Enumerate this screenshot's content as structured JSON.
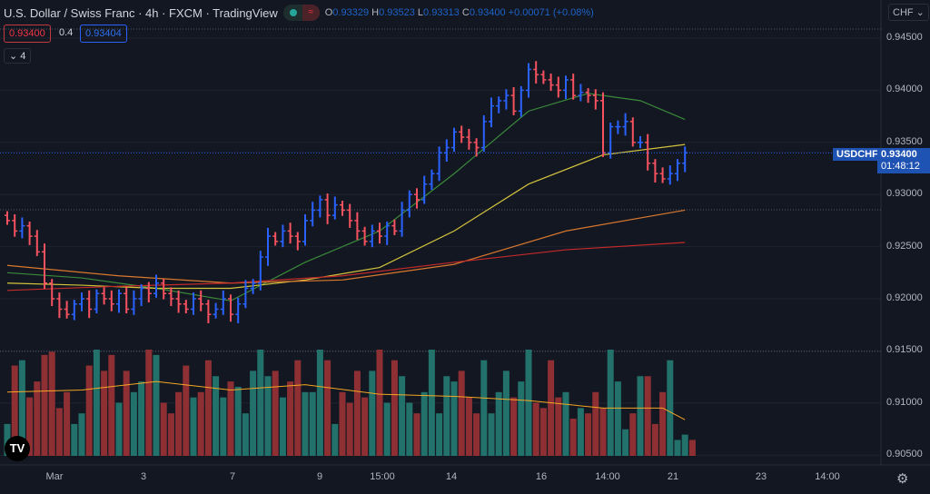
{
  "header": {
    "title": "U.S. Dollar / Swiss Franc · 4h · FXCM · TradingView",
    "market_status": "≈",
    "o_label": "O",
    "o": "0.93329",
    "h_label": "H",
    "h": "0.93523",
    "l_label": "L",
    "l": "0.93313",
    "c_label": "C",
    "c": "0.93400",
    "change": "+0.00071 (+0.08%)"
  },
  "trade": {
    "sell": "0.93400",
    "spread": "0.4",
    "buy": "0.93404",
    "indicators_collapsed": "4"
  },
  "price_axis": {
    "currency": "CHF",
    "ticks": [
      "0.94500",
      "0.94000",
      "0.93500",
      "0.93000",
      "0.92500",
      "0.92000",
      "0.91500",
      "0.91000",
      "0.90500"
    ],
    "symbol_tag": "USDCHF",
    "last_price": "0.93400",
    "countdown": "01:48:12"
  },
  "time_axis": {
    "ticks": [
      "Mar",
      "3",
      "7",
      "9",
      "15:00",
      "14",
      "16",
      "14:00",
      "21",
      "23",
      "14:00"
    ]
  },
  "colors": {
    "up": "#2962ff",
    "down": "#f7525f",
    "vol_up": "#22726b",
    "vol_down": "#8e3033",
    "vol_ma": "#f5a623",
    "bg": "#131722",
    "grid": "#1f2330"
  },
  "chart_data": {
    "type": "ohlc",
    "price_range": [
      0.905,
      0.945
    ],
    "closes": [
      0.9275,
      0.9265,
      0.927,
      0.926,
      0.9245,
      0.9215,
      0.92,
      0.919,
      0.9185,
      0.9195,
      0.92,
      0.919,
      0.9205,
      0.92,
      0.9195,
      0.9205,
      0.919,
      0.92,
      0.921,
      0.9205,
      0.9215,
      0.9205,
      0.92,
      0.9195,
      0.919,
      0.92,
      0.9195,
      0.9185,
      0.919,
      0.92,
      0.9185,
      0.9195,
      0.921,
      0.9215,
      0.924,
      0.926,
      0.9255,
      0.9265,
      0.926,
      0.9255,
      0.9275,
      0.9285,
      0.9295,
      0.928,
      0.929,
      0.9285,
      0.9275,
      0.9265,
      0.9255,
      0.9265,
      0.926,
      0.927,
      0.9265,
      0.9285,
      0.93,
      0.9295,
      0.931,
      0.932,
      0.934,
      0.9345,
      0.936,
      0.9355,
      0.935,
      0.9345,
      0.937,
      0.9385,
      0.939,
      0.9395,
      0.938,
      0.94,
      0.942,
      0.9415,
      0.941,
      0.9405,
      0.94,
      0.941,
      0.9395,
      0.9398,
      0.9395,
      0.939,
      0.934,
      0.9365,
      0.9365,
      0.937,
      0.935,
      0.935,
      0.933,
      0.932,
      0.9315,
      0.932,
      0.933,
      0.934
    ],
    "volumes": [
      30,
      85,
      90,
      55,
      70,
      95,
      98,
      45,
      60,
      30,
      40,
      85,
      100,
      80,
      95,
      50,
      80,
      60,
      70,
      100,
      95,
      50,
      40,
      60,
      85,
      55,
      60,
      90,
      75,
      55,
      70,
      65,
      40,
      80,
      100,
      75,
      80,
      55,
      70,
      90,
      60,
      60,
      100,
      90,
      30,
      60,
      50,
      80,
      55,
      80,
      100,
      50,
      90,
      75,
      50,
      40,
      60,
      100,
      40,
      75,
      70,
      80,
      55,
      40,
      90,
      40,
      60,
      80,
      55,
      70,
      100,
      50,
      45,
      90,
      55,
      60,
      35,
      45,
      40,
      60,
      45,
      100,
      70,
      25,
      40,
      75,
      75,
      30,
      60,
      90,
      15,
      20,
      15
    ],
    "volume_ma": [
      [
        0,
        60
      ],
      [
        10,
        62
      ],
      [
        20,
        70
      ],
      [
        30,
        62
      ],
      [
        40,
        67
      ],
      [
        50,
        58
      ],
      [
        60,
        56
      ],
      [
        70,
        52
      ],
      [
        80,
        45
      ],
      [
        88,
        45
      ],
      [
        91,
        34
      ]
    ],
    "moving_averages": [
      {
        "color": "#3a8a3a",
        "points": [
          [
            0,
            0.9225
          ],
          [
            10,
            0.922
          ],
          [
            20,
            0.921
          ],
          [
            30,
            0.9198
          ],
          [
            40,
            0.9235
          ],
          [
            50,
            0.9265
          ],
          [
            60,
            0.932
          ],
          [
            70,
            0.938
          ],
          [
            78,
            0.9397
          ],
          [
            85,
            0.939
          ],
          [
            91,
            0.9372
          ]
        ]
      },
      {
        "color": "#d4c43c",
        "points": [
          [
            0,
            0.9215
          ],
          [
            10,
            0.9213
          ],
          [
            20,
            0.921
          ],
          [
            30,
            0.921
          ],
          [
            40,
            0.9218
          ],
          [
            50,
            0.923
          ],
          [
            60,
            0.9265
          ],
          [
            70,
            0.931
          ],
          [
            80,
            0.9338
          ],
          [
            91,
            0.9348
          ]
        ]
      },
      {
        "color": "#d9782e",
        "points": [
          [
            0,
            0.9232
          ],
          [
            15,
            0.9222
          ],
          [
            30,
            0.9215
          ],
          [
            45,
            0.9218
          ],
          [
            60,
            0.9233
          ],
          [
            75,
            0.9265
          ],
          [
            91,
            0.9285
          ]
        ]
      },
      {
        "color": "#c42a2a",
        "points": [
          [
            0,
            0.9208
          ],
          [
            15,
            0.9212
          ],
          [
            30,
            0.9215
          ],
          [
            45,
            0.9222
          ],
          [
            60,
            0.9235
          ],
          [
            75,
            0.9247
          ],
          [
            91,
            0.9254
          ]
        ]
      }
    ]
  }
}
